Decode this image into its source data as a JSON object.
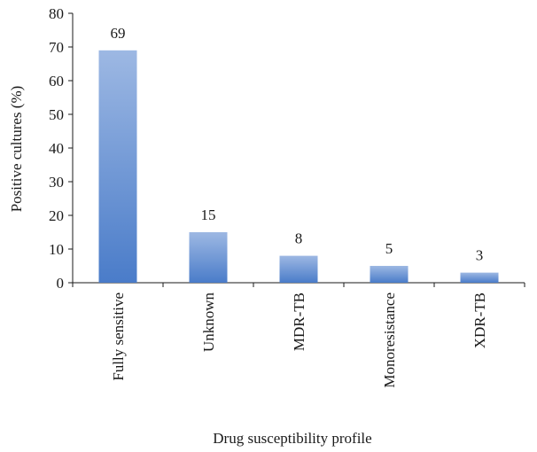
{
  "chart_data": {
    "type": "bar",
    "categories": [
      "Fully sensitive",
      "Unknown",
      "MDR-TB",
      "Monoresistance",
      "XDR-TB"
    ],
    "values": [
      69,
      15,
      8,
      5,
      3
    ],
    "data_labels": [
      "69",
      "15",
      "8",
      "5",
      "3"
    ],
    "xlabel": "Drug susceptibility profile",
    "ylabel": "Positive cultures (%)",
    "ylim": [
      0,
      80
    ],
    "yticks": [
      0,
      10,
      20,
      30,
      40,
      50,
      60,
      70,
      80
    ],
    "grid": false,
    "legend": "none",
    "bar_color_top": "#9db8e3",
    "bar_color_bottom": "#4a7cc9"
  }
}
